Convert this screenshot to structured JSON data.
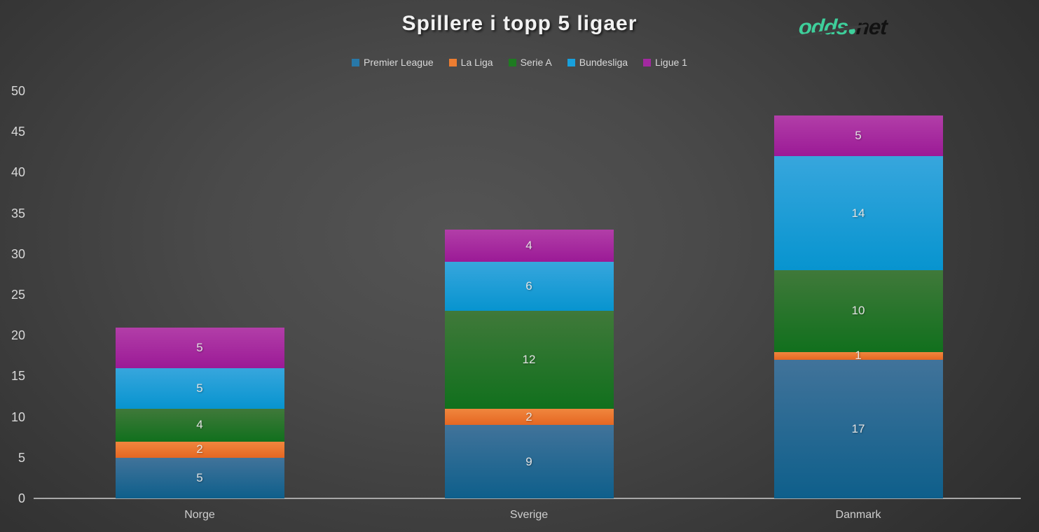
{
  "title": "Spillere i topp 5 ligaer",
  "logo": {
    "part1": "odds",
    "part2": "net",
    "accent_color": "#3ecf9b",
    "text_color": "#121212"
  },
  "chart_data": {
    "type": "bar",
    "stacked": true,
    "title": "Spillere i topp 5 ligaer",
    "categories": [
      "Norge",
      "Sverige",
      "Danmark"
    ],
    "series": [
      {
        "name": "Premier League",
        "values": [
          5,
          9,
          17
        ],
        "color": "#2878a8",
        "gradient_top": "#41739a",
        "gradient_bottom": "#0e5f8b"
      },
      {
        "name": "La Liga",
        "values": [
          2,
          2,
          1
        ],
        "color": "#ed7d31",
        "gradient_top": "#f0863e",
        "gradient_bottom": "#e56722"
      },
      {
        "name": "Serie A",
        "values": [
          4,
          12,
          10
        ],
        "color": "#1e7b21",
        "gradient_top": "#40793a",
        "gradient_bottom": "#11701d"
      },
      {
        "name": "Bundesliga",
        "values": [
          5,
          6,
          14
        ],
        "color": "#18a0dc",
        "gradient_top": "#37a6dd",
        "gradient_bottom": "#0794cf"
      },
      {
        "name": "Ligue 1",
        "values": [
          5,
          4,
          5
        ],
        "color": "#a229a0",
        "gradient_top": "#b23ea8",
        "gradient_bottom": "#9b1a96"
      }
    ],
    "xlabel": "",
    "ylabel": "",
    "ylim": [
      0,
      50
    ],
    "yticks": [
      0,
      5,
      10,
      15,
      20,
      25,
      30,
      35,
      40,
      45,
      50
    ],
    "grid": false,
    "legend_position": "top",
    "data_labels": true
  }
}
